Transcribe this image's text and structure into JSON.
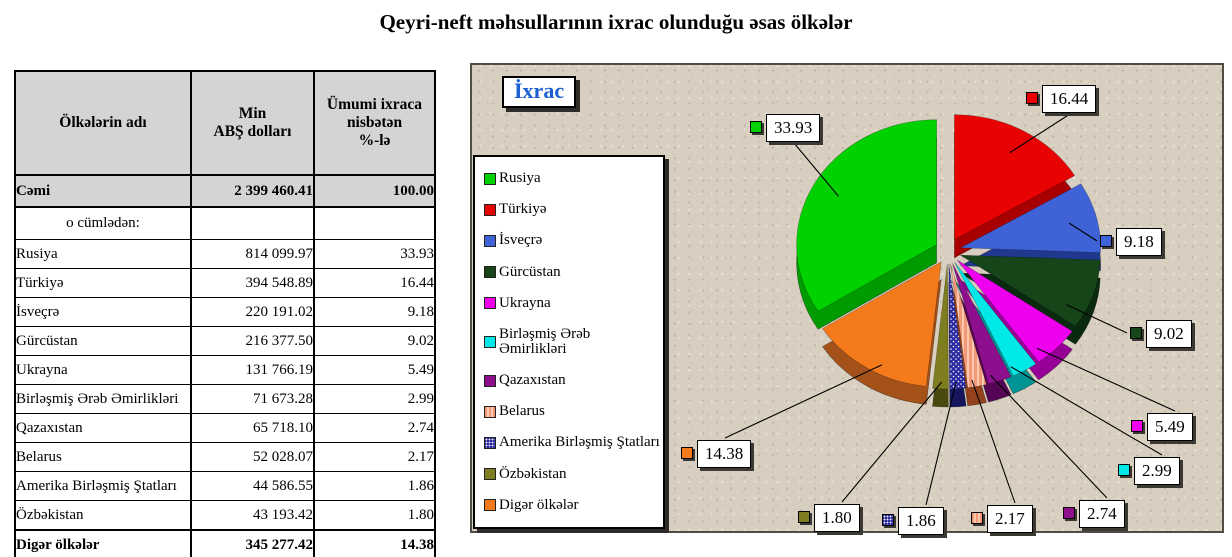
{
  "page_title": "Qeyri-neft məhsullarının ixrac olunduğu əsas ölkələr",
  "table": {
    "headers": [
      "Ölkələrin adı",
      "Min\nABŞ dolları",
      "Ümumi ixraca\nnisbətən\n%-lə"
    ],
    "total_row": {
      "label": "Cəmi",
      "value": "2 399 460.41",
      "percent": "100.00"
    },
    "subheader": "o cümlədən:",
    "rows": [
      {
        "label": "Rusiya",
        "value": "814 099.97",
        "percent": "33.93"
      },
      {
        "label": "Türkiyə",
        "value": "394 548.89",
        "percent": "16.44"
      },
      {
        "label": "İsveçrə",
        "value": "220 191.02",
        "percent": "9.18"
      },
      {
        "label": "Gürcüstan",
        "value": "216 377.50",
        "percent": "9.02"
      },
      {
        "label": "Ukrayna",
        "value": "131 766.19",
        "percent": "5.49"
      },
      {
        "label": "Birləşmiş Ərəb Əmirlikləri",
        "value": "71 673.28",
        "percent": "2.99"
      },
      {
        "label": "Qazaxıstan",
        "value": "65 718.10",
        "percent": "2.74"
      },
      {
        "label": "Belarus",
        "value": "52 028.07",
        "percent": "2.17"
      },
      {
        "label": "Amerika Birləşmiş Ştatları",
        "value": "44 586.55",
        "percent": "1.86"
      },
      {
        "label": "Özbəkistan",
        "value": "43 193.42",
        "percent": "1.80"
      },
      {
        "label": "Digər ölkələr",
        "value": "345 277.42",
        "percent": "14.38"
      }
    ]
  },
  "chart": {
    "title": "İxrac",
    "title_color": "#1b5fd2",
    "background_color": "#d8cfc0"
  },
  "chart_data": {
    "type": "pie",
    "style": "3d-exploded",
    "title": "İxrac",
    "legend_position": "left",
    "categories": [
      "Rusiya",
      "Türkiyə",
      "İsveçrə",
      "Gürcüstan",
      "Ukrayna",
      "Birləşmiş Ərəb Əmirlikləri",
      "Qazaxıstan",
      "Belarus",
      "Amerika Birləşmiş Ştatları",
      "Özbəkistan",
      "Digər ölkələr"
    ],
    "values": [
      33.93,
      16.44,
      9.18,
      9.02,
      5.49,
      2.99,
      2.74,
      2.17,
      1.86,
      1.8,
      14.38
    ],
    "labels": [
      "33.93",
      "16.44",
      "9.18",
      "9.02",
      "5.49",
      "2.99",
      "2.74",
      "2.17",
      "1.86",
      "1.80",
      "14.38"
    ],
    "colors": [
      "#00d200",
      "#e80202",
      "#3f62d6",
      "#16451a",
      "#ee00ee",
      "#00e8e8",
      "#8d0f8d",
      "#f09878",
      "#2b2ba2",
      "#7e7e20",
      "#f57a1c"
    ],
    "side_colors": [
      "#009b00",
      "#a80000",
      "#20398f",
      "#0a2a10",
      "#970097",
      "#009494",
      "#540553",
      "#94421c",
      "#16165e",
      "#4a4a0e",
      "#a5521a"
    ],
    "patterns": {
      "7": "stripes",
      "8": "dots"
    }
  }
}
